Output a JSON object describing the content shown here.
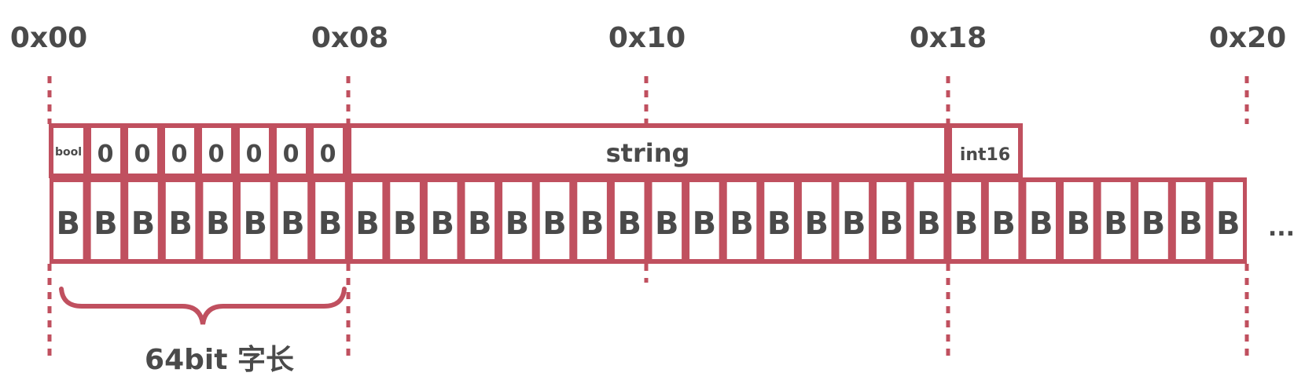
{
  "addresses": [
    "0x00",
    "0x08",
    "0x10",
    "0x18",
    "0x20"
  ],
  "fields": {
    "bool": "bool",
    "padding": [
      "0",
      "0",
      "0",
      "0",
      "0",
      "0",
      "0"
    ],
    "string": "string",
    "int16": "int16"
  },
  "byte_label": "B",
  "byte_count": 32,
  "ellipsis": "...",
  "brace_label": "64bit 字长",
  "colors": {
    "accent": "#c0505f",
    "text": "#4a4a4a",
    "background": "#ffffff"
  }
}
